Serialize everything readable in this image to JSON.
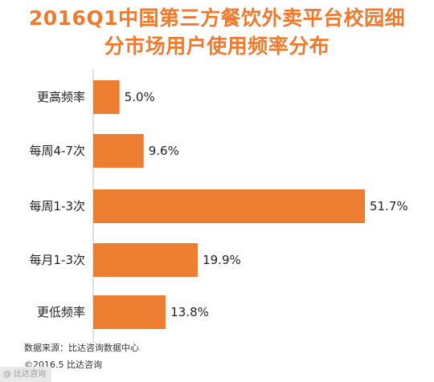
{
  "chart_data": {
    "type": "bar",
    "orientation": "horizontal",
    "title_lines": [
      "2016Q1中国第三方餐饮外卖平台校园细",
      "分市场用户使用频率分布"
    ],
    "categories": [
      "更高频率",
      "每周4-7次",
      "每周1-3次",
      "每月1-3次",
      "更低频率"
    ],
    "values": [
      5.0,
      9.6,
      51.7,
      19.9,
      13.8
    ],
    "value_labels": [
      "5.0%",
      "9.6%",
      "51.7%",
      "19.9%",
      "13.8%"
    ],
    "bar_color": "#ed7d31",
    "grid": false,
    "xlim": [
      0,
      51.7
    ]
  },
  "footer": {
    "source": "数据来源：比达咨询数据中心",
    "copyright": "©2016.5  比达咨询"
  },
  "watermark": {
    "text": "@ 比达咨询"
  }
}
